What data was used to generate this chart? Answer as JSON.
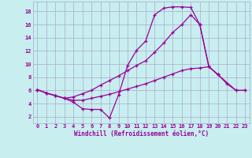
{
  "background_color": "#c8eef0",
  "grid_color": "#aaaacc",
  "line_color": "#990099",
  "xlabel": "Windchill (Refroidissement éolien,°C)",
  "xlabel_fontsize": 5.5,
  "tick_fontsize": 5,
  "xlim": [
    -0.5,
    23.5
  ],
  "ylim": [
    1.0,
    19.5
  ],
  "yticks": [
    2,
    4,
    6,
    8,
    10,
    12,
    14,
    16,
    18
  ],
  "xticks": [
    0,
    1,
    2,
    3,
    4,
    5,
    6,
    7,
    8,
    9,
    10,
    11,
    12,
    13,
    14,
    15,
    16,
    17,
    18,
    19,
    20,
    21,
    22,
    23
  ],
  "series1_x": [
    0,
    1,
    2,
    3,
    4,
    5,
    6,
    7,
    8,
    9,
    10,
    11,
    12,
    13,
    14,
    15,
    16,
    17,
    18,
    19,
    20
  ],
  "series1_y": [
    6.1,
    5.6,
    5.2,
    4.8,
    4.2,
    3.2,
    3.1,
    3.1,
    1.8,
    5.3,
    9.8,
    12.1,
    13.5,
    17.5,
    18.5,
    18.7,
    18.7,
    18.6,
    16.0,
    9.6,
    8.4
  ],
  "series2_x": [
    0,
    1,
    2,
    3,
    4,
    5,
    6,
    7,
    8,
    9,
    10,
    11,
    12,
    13,
    14,
    15,
    16,
    17,
    18,
    19,
    20,
    22,
    23
  ],
  "series2_y": [
    6.1,
    5.6,
    5.2,
    4.8,
    5.0,
    5.5,
    6.0,
    6.8,
    7.5,
    8.2,
    9.0,
    9.8,
    10.5,
    11.8,
    13.2,
    14.8,
    16.0,
    17.5,
    16.0,
    9.6,
    8.4,
    6.0,
    6.0
  ],
  "series3_x": [
    0,
    1,
    2,
    3,
    4,
    5,
    6,
    7,
    8,
    9,
    10,
    11,
    12,
    13,
    14,
    15,
    16,
    17,
    18,
    19,
    20,
    21,
    22,
    23
  ],
  "series3_y": [
    6.1,
    5.6,
    5.2,
    4.8,
    4.5,
    4.5,
    4.8,
    5.1,
    5.4,
    5.8,
    6.2,
    6.6,
    7.0,
    7.5,
    8.0,
    8.5,
    9.0,
    9.3,
    9.4,
    9.6,
    8.4,
    7.0,
    6.0,
    6.0
  ]
}
